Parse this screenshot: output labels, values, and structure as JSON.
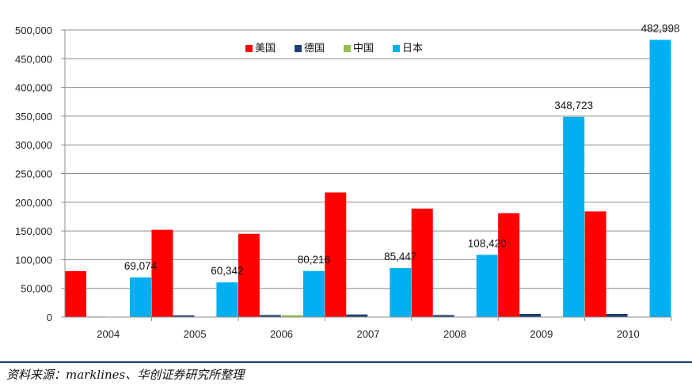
{
  "chart_data": {
    "type": "bar",
    "categories": [
      "2004",
      "2005",
      "2006",
      "2007",
      "2008",
      "2009",
      "2010"
    ],
    "series": [
      {
        "name": "美国",
        "color": "#ff0000",
        "values": [
          80000,
          152000,
          145000,
          217000,
          189000,
          181000,
          184000
        ]
      },
      {
        "name": "德国",
        "color": "#1f3f73",
        "values": [
          800,
          3000,
          3500,
          4500,
          3500,
          5500,
          5500
        ]
      },
      {
        "name": "中国",
        "color": "#92c050",
        "values": [
          200,
          300,
          3200,
          500,
          500,
          500,
          500
        ]
      },
      {
        "name": "日本",
        "color": "#00b0f0",
        "values": [
          69074,
          60342,
          80216,
          85447,
          108420,
          348723,
          482998
        ]
      }
    ],
    "data_labels": [
      "69,074",
      "60,342",
      "80,216",
      "85,447",
      "108,420",
      "348,723",
      "482,998"
    ],
    "y_ticks": [
      "0",
      "50,000",
      "100,000",
      "150,000",
      "200,000",
      "250,000",
      "300,000",
      "350,000",
      "400,000",
      "450,000",
      "500,000"
    ],
    "ylim": [
      0,
      500000
    ],
    "y_step": 50000,
    "grid": true,
    "legend_position": "top-center",
    "title": "",
    "xlabel": "",
    "ylabel": ""
  },
  "source_note": "资料来源：marklines、华创证券研究所整理"
}
